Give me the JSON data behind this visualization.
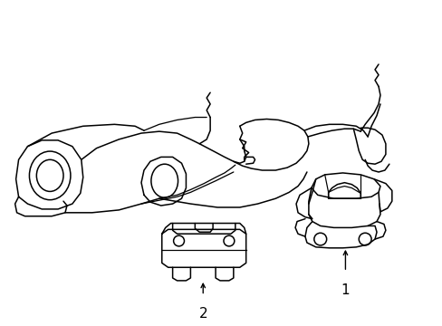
{
  "background_color": "#ffffff",
  "line_color": "#000000",
  "line_width": 1.1,
  "fig_width": 4.89,
  "fig_height": 3.6,
  "dpi": 100,
  "label1_text": "1",
  "label2_text": "2"
}
